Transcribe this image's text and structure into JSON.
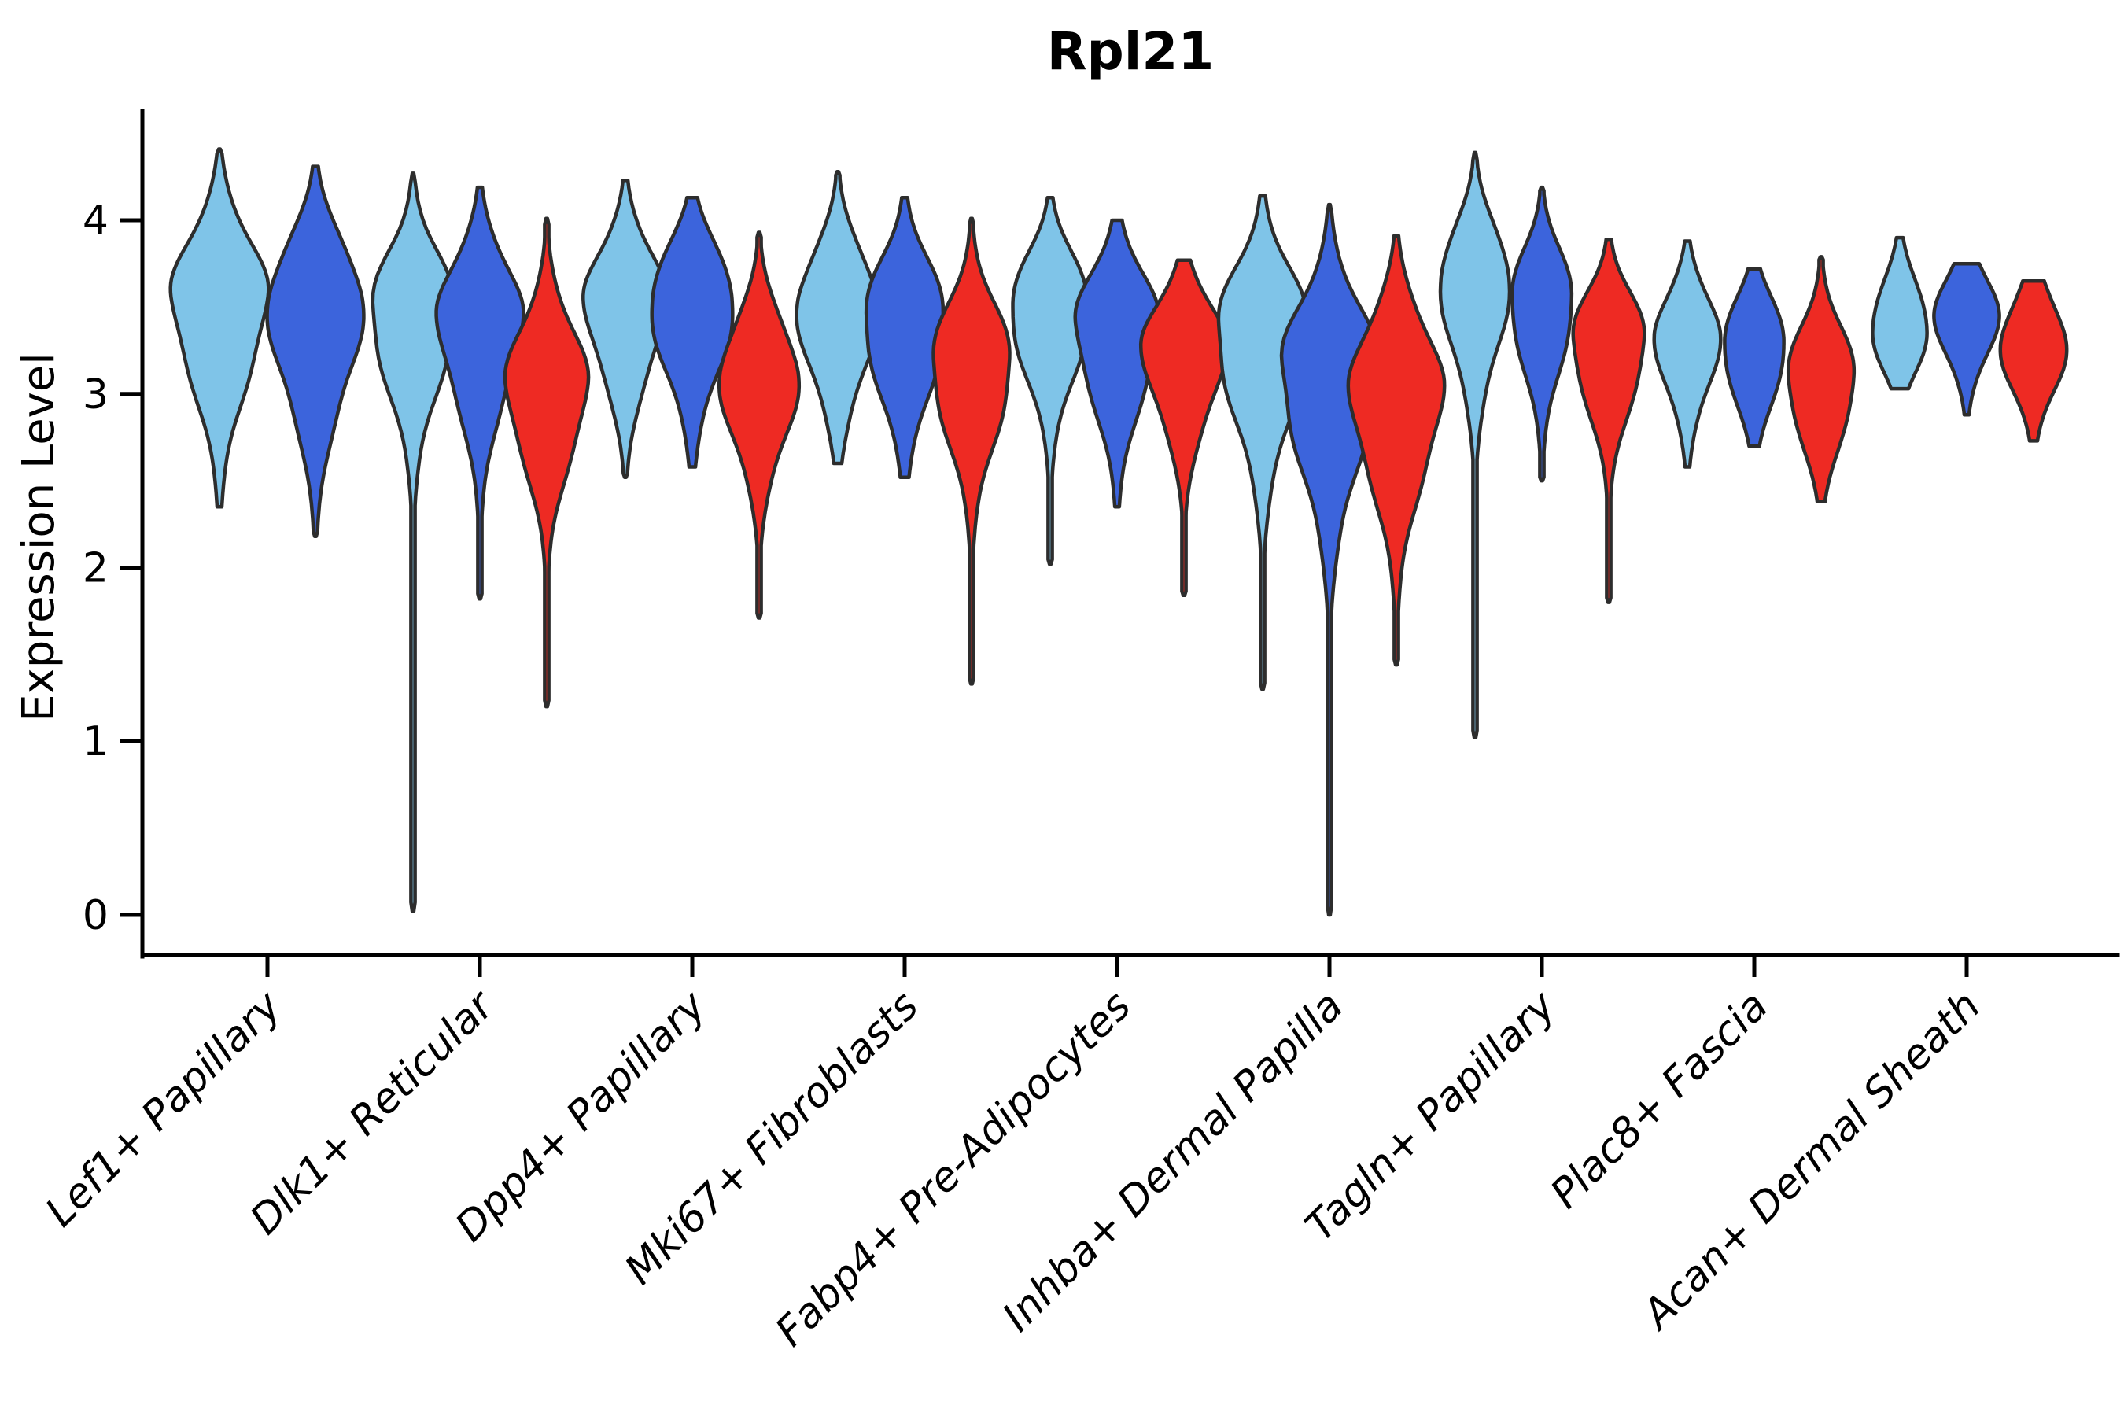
{
  "chart_data": {
    "type": "violin",
    "title": "Rpl21",
    "xlabel": "",
    "ylabel": "Expression Level",
    "ylim": [
      -0.24,
      4.63
    ],
    "yticks": [
      0,
      1,
      2,
      3,
      4
    ],
    "ytick_labels": [
      "0",
      "1",
      "2",
      "3",
      "4"
    ],
    "grid": false,
    "legend": "none",
    "categories": [
      "Lef1+ Papillary",
      "Dlk1+ Reticular",
      "Dpp4+ Papillary",
      "Mki67+ Fibroblasts",
      "Fabp4+ Pre-Adipocytes",
      "Inhba+ Dermal Papilla",
      "Tagln+ Papillary",
      "Plac8+ Fascia",
      "Acan+ Dermal Sheath"
    ],
    "series_order": [
      "light_blue",
      "dark_blue",
      "red"
    ],
    "colors": {
      "light_blue": "#7FC4E8",
      "dark_blue": "#3C64DC",
      "red": "#EE2A23",
      "outline": "#2D2D2D",
      "axis": "#000000"
    },
    "violins": [
      {
        "category": 0,
        "series": "light_blue",
        "min": 2.35,
        "mode": 3.58,
        "max": 4.41,
        "s_lo": 0.5,
        "s_hi": 0.33,
        "w": 1.09
      },
      {
        "category": 0,
        "series": "dark_blue",
        "min": 2.18,
        "mode": 3.53,
        "max": 4.31,
        "s_lo": 0.53,
        "s_hi": 0.33,
        "w": 1.09
      },
      {
        "category": 1,
        "series": "light_blue",
        "min": 0.02,
        "mode": 3.5,
        "max": 4.27,
        "s_lo": 0.46,
        "s_hi": 0.3,
        "w": 0.96
      },
      {
        "category": 1,
        "series": "dark_blue",
        "min": 1.82,
        "mode": 3.47,
        "max": 4.19,
        "s_lo": 0.48,
        "s_hi": 0.3,
        "w": 0.96
      },
      {
        "category": 1,
        "series": "red",
        "min": 1.2,
        "mode": 3.07,
        "max": 4.01,
        "s_lo": 0.44,
        "s_hi": 0.33,
        "w": 0.93
      },
      {
        "category": 2,
        "series": "light_blue",
        "min": 2.52,
        "mode": 3.56,
        "max": 4.23,
        "s_lo": 0.42,
        "s_hi": 0.28,
        "w": 0.93
      },
      {
        "category": 2,
        "series": "dark_blue",
        "min": 2.58,
        "mode": 3.54,
        "max": 4.13,
        "s_lo": 0.42,
        "s_hi": 0.29,
        "w": 0.96
      },
      {
        "category": 2,
        "series": "red",
        "min": 1.71,
        "mode": 3.1,
        "max": 3.93,
        "s_lo": 0.4,
        "s_hi": 0.31,
        "w": 0.9
      },
      {
        "category": 3,
        "series": "light_blue",
        "min": 2.6,
        "mode": 3.51,
        "max": 4.28,
        "s_lo": 0.42,
        "s_hi": 0.3,
        "w": 0.93
      },
      {
        "category": 3,
        "series": "dark_blue",
        "min": 2.52,
        "mode": 3.45,
        "max": 4.13,
        "s_lo": 0.44,
        "s_hi": 0.3,
        "w": 0.93
      },
      {
        "category": 3,
        "series": "red",
        "min": 1.33,
        "mode": 3.19,
        "max": 4.01,
        "s_lo": 0.44,
        "s_hi": 0.31,
        "w": 0.91
      },
      {
        "category": 4,
        "series": "light_blue",
        "min": 2.02,
        "mode": 3.51,
        "max": 4.13,
        "s_lo": 0.4,
        "s_hi": 0.27,
        "w": 0.91
      },
      {
        "category": 4,
        "series": "dark_blue",
        "min": 2.35,
        "mode": 3.41,
        "max": 4.0,
        "s_lo": 0.44,
        "s_hi": 0.29,
        "w": 0.95
      },
      {
        "category": 4,
        "series": "red",
        "min": 1.84,
        "mode": 3.29,
        "max": 3.77,
        "s_lo": 0.4,
        "s_hi": 0.25,
        "w": 0.95
      },
      {
        "category": 5,
        "series": "light_blue",
        "min": 1.3,
        "mode": 3.39,
        "max": 4.14,
        "s_lo": 0.52,
        "s_hi": 0.32,
        "w": 1.05
      },
      {
        "category": 5,
        "series": "dark_blue",
        "min": 0.0,
        "mode": 3.17,
        "max": 4.09,
        "s_lo": 0.57,
        "s_hi": 0.35,
        "w": 1.1
      },
      {
        "category": 5,
        "series": "red",
        "min": 1.44,
        "mode": 3.05,
        "max": 3.91,
        "s_lo": 0.52,
        "s_hi": 0.35,
        "w": 1.06
      },
      {
        "category": 6,
        "series": "light_blue",
        "min": 1.02,
        "mode": 3.67,
        "max": 4.39,
        "s_lo": 0.44,
        "s_hi": 0.28,
        "w": 0.8
      },
      {
        "category": 6,
        "series": "dark_blue",
        "min": 2.5,
        "mode": 3.55,
        "max": 4.19,
        "s_lo": 0.38,
        "s_hi": 0.26,
        "w": 0.72
      },
      {
        "category": 6,
        "series": "red",
        "min": 1.8,
        "mode": 3.32,
        "max": 3.89,
        "s_lo": 0.38,
        "s_hi": 0.25,
        "w": 0.84
      },
      {
        "category": 7,
        "series": "light_blue",
        "min": 2.58,
        "mode": 3.34,
        "max": 3.88,
        "s_lo": 0.33,
        "s_hi": 0.24,
        "w": 0.74
      },
      {
        "category": 7,
        "series": "dark_blue",
        "min": 2.7,
        "mode": 3.3,
        "max": 3.72,
        "s_lo": 0.32,
        "s_hi": 0.23,
        "w": 0.72
      },
      {
        "category": 7,
        "series": "red",
        "min": 2.38,
        "mode": 3.1,
        "max": 3.79,
        "s_lo": 0.35,
        "s_hi": 0.27,
        "w": 0.78
      },
      {
        "category": 8,
        "series": "light_blue",
        "min": 3.03,
        "mode": 3.36,
        "max": 3.9,
        "s_lo": 0.21,
        "s_hi": 0.26,
        "w": 0.66
      },
      {
        "category": 8,
        "series": "dark_blue",
        "min": 2.88,
        "mode": 3.45,
        "max": 3.75,
        "s_lo": 0.25,
        "s_hi": 0.23,
        "w": 0.72
      },
      {
        "category": 8,
        "series": "red",
        "min": 2.73,
        "mode": 3.28,
        "max": 3.65,
        "s_lo": 0.27,
        "s_hi": 0.25,
        "w": 0.75
      }
    ]
  }
}
